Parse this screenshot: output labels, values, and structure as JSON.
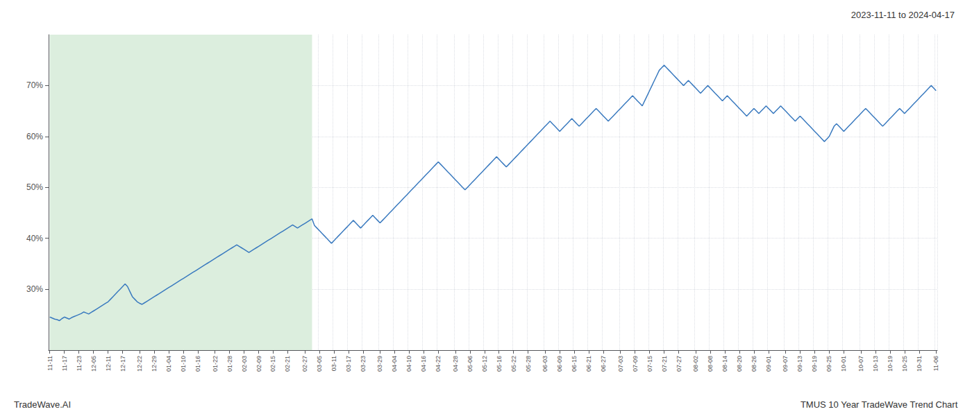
{
  "chart_data": {
    "type": "line",
    "title": "2023-11-11 to 2024-04-17",
    "annotations": [
      "TradeWave.AI",
      "TMUS 10 Year TradeWave Trend Chart"
    ],
    "color": "#3a7abf",
    "grid": true,
    "ylim": [
      18,
      80
    ],
    "yticks": [
      {
        "value": 30,
        "label": "30%"
      },
      {
        "value": 40,
        "label": "40%"
      },
      {
        "value": 50,
        "label": "50%"
      },
      {
        "value": 60,
        "label": "60%"
      },
      {
        "value": 70,
        "label": "70%"
      }
    ],
    "shaded_region": {
      "x_start": 0,
      "x_end": 108,
      "color": "#dceede"
    },
    "categories": [
      "11-11",
      null,
      null,
      null,
      null,
      null,
      "11-17",
      null,
      null,
      null,
      null,
      null,
      "11-23",
      null,
      null,
      null,
      null,
      null,
      "12-05",
      null,
      null,
      null,
      null,
      null,
      "12-11",
      null,
      null,
      null,
      null,
      null,
      "12-17",
      null,
      null,
      null,
      null,
      null,
      null,
      "12-22",
      null,
      null,
      null,
      null,
      null,
      "12-29",
      null,
      null,
      null,
      null,
      null,
      "01-04",
      null,
      null,
      null,
      null,
      null,
      "01-10",
      null,
      null,
      null,
      null,
      null,
      "01-16",
      null,
      null,
      null,
      null,
      null,
      null,
      "01-22",
      null,
      null,
      null,
      null,
      null,
      "01-28",
      null,
      null,
      null,
      null,
      null,
      "02-03",
      null,
      null,
      null,
      null,
      null,
      "02-09",
      null,
      null,
      null,
      null,
      null,
      "02-15",
      null,
      null,
      null,
      null,
      null,
      "02-21",
      null,
      null,
      null,
      null,
      null,
      null,
      "02-27",
      null,
      null,
      null,
      null,
      null,
      "03-05",
      null,
      null,
      null,
      null,
      null,
      "03-11",
      null,
      null,
      null,
      null,
      null,
      "03-17",
      null,
      null,
      null,
      null,
      null,
      "03-23",
      null,
      null,
      null,
      null,
      null,
      null,
      "03-29",
      null,
      null,
      null,
      null,
      null,
      "04-04",
      null,
      null,
      null,
      null,
      null,
      "04-10",
      null,
      null,
      null,
      null,
      null,
      "04-16",
      null,
      null,
      null,
      null,
      null,
      "04-22",
      null,
      null,
      null,
      null,
      null,
      null,
      "04-28",
      null,
      null,
      null,
      null,
      null,
      "05-06",
      null,
      null,
      null,
      null,
      null,
      "05-12",
      null,
      null,
      null,
      null,
      null,
      "05-16",
      null,
      null,
      null,
      null,
      null,
      "05-22",
      null,
      null,
      null,
      null,
      null,
      "05-28",
      null,
      null,
      null,
      null,
      null,
      null,
      "06-03",
      null,
      null,
      null,
      null,
      null,
      "06-09",
      null,
      null,
      null,
      null,
      null,
      "06-15",
      null,
      null,
      null,
      null,
      null,
      "06-21",
      null,
      null,
      null,
      null,
      null,
      "06-27",
      null,
      null,
      null,
      null,
      null,
      null,
      "07-03",
      null,
      null,
      null,
      null,
      null,
      "07-09",
      null,
      null,
      null,
      null,
      null,
      "07-15",
      null,
      null,
      null,
      null,
      null,
      "07-21",
      null,
      null,
      null,
      null,
      null,
      "07-27",
      null,
      null,
      null,
      null,
      null,
      null,
      "08-02",
      null,
      null,
      null,
      null,
      null,
      "08-08",
      null,
      null,
      null,
      null,
      null,
      "08-14",
      null,
      null,
      null,
      null,
      null,
      "08-20",
      null,
      null,
      null,
      null,
      null,
      "08-26",
      null,
      null,
      null,
      null,
      null,
      "09-01",
      null,
      null,
      null,
      null,
      null,
      null,
      "09-07",
      null,
      null,
      null,
      null,
      null,
      "09-13",
      null,
      null,
      null,
      null,
      null,
      "09-19",
      null,
      null,
      null,
      null,
      null,
      "09-25",
      null,
      null,
      null,
      null,
      null,
      "10-01",
      null,
      null,
      null,
      null,
      null,
      null,
      "10-07",
      null,
      null,
      null,
      null,
      null,
      "10-13",
      null,
      null,
      null,
      null,
      null,
      "10-19",
      null,
      null,
      null,
      null,
      null,
      "10-25",
      null,
      null,
      null,
      null,
      null,
      "10-31",
      null,
      null,
      null,
      null,
      null,
      null,
      "11-06"
    ],
    "values": [
      24.5,
      24.3,
      24.1,
      24.0,
      23.8,
      24.2,
      24.5,
      24.3,
      24.1,
      24.4,
      24.6,
      24.8,
      25.0,
      25.2,
      25.5,
      25.3,
      25.1,
      25.4,
      25.7,
      26.0,
      26.3,
      26.6,
      26.9,
      27.2,
      27.5,
      28.0,
      28.5,
      29.0,
      29.5,
      30.0,
      30.5,
      31.0,
      30.5,
      29.5,
      28.5,
      28.0,
      27.5,
      27.2,
      27.0,
      27.3,
      27.6,
      27.9,
      28.2,
      28.5,
      28.8,
      29.1,
      29.4,
      29.7,
      30.0,
      30.3,
      30.6,
      30.9,
      31.2,
      31.5,
      31.8,
      32.1,
      32.4,
      32.7,
      33.0,
      33.3,
      33.6,
      33.9,
      34.2,
      34.5,
      34.8,
      35.1,
      35.4,
      35.7,
      36.0,
      36.3,
      36.6,
      36.9,
      37.2,
      37.5,
      37.8,
      38.1,
      38.4,
      38.7,
      38.4,
      38.1,
      37.8,
      37.5,
      37.2,
      37.5,
      37.8,
      38.1,
      38.4,
      38.7,
      39.0,
      39.3,
      39.6,
      39.9,
      40.2,
      40.5,
      40.8,
      41.1,
      41.4,
      41.7,
      42.0,
      42.3,
      42.6,
      42.3,
      42.0,
      42.3,
      42.6,
      42.9,
      43.2,
      43.5,
      43.8,
      42.5,
      42.0,
      41.5,
      41.0,
      40.5,
      40.0,
      39.5,
      39.0,
      39.5,
      40.0,
      40.5,
      41.0,
      41.5,
      42.0,
      42.5,
      43.0,
      43.5,
      43.0,
      42.5,
      42.0,
      42.5,
      43.0,
      43.5,
      44.0,
      44.5,
      44.0,
      43.5,
      43.0,
      43.5,
      44.0,
      44.5,
      45.0,
      45.5,
      46.0,
      46.5,
      47.0,
      47.5,
      48.0,
      48.5,
      49.0,
      49.5,
      50.0,
      50.5,
      51.0,
      51.5,
      52.0,
      52.5,
      53.0,
      53.5,
      54.0,
      54.5,
      55.0,
      54.5,
      54.0,
      53.5,
      53.0,
      52.5,
      52.0,
      51.5,
      51.0,
      50.5,
      50.0,
      49.5,
      50.0,
      50.5,
      51.0,
      51.5,
      52.0,
      52.5,
      53.0,
      53.5,
      54.0,
      54.5,
      55.0,
      55.5,
      56.0,
      55.5,
      55.0,
      54.5,
      54.0,
      54.5,
      55.0,
      55.5,
      56.0,
      56.5,
      57.0,
      57.5,
      58.0,
      58.5,
      59.0,
      59.5,
      60.0,
      60.5,
      61.0,
      61.5,
      62.0,
      62.5,
      63.0,
      62.5,
      62.0,
      61.5,
      61.0,
      61.5,
      62.0,
      62.5,
      63.0,
      63.5,
      63.0,
      62.5,
      62.0,
      62.5,
      63.0,
      63.5,
      64.0,
      64.5,
      65.0,
      65.5,
      65.0,
      64.5,
      64.0,
      63.5,
      63.0,
      63.5,
      64.0,
      64.5,
      65.0,
      65.5,
      66.0,
      66.5,
      67.0,
      67.5,
      68.0,
      67.5,
      67.0,
      66.5,
      66.0,
      67.0,
      68.0,
      69.0,
      70.0,
      71.0,
      72.0,
      73.0,
      73.5,
      74.0,
      73.5,
      73.0,
      72.5,
      72.0,
      71.5,
      71.0,
      70.5,
      70.0,
      70.5,
      71.0,
      70.5,
      70.0,
      69.5,
      69.0,
      68.5,
      69.0,
      69.5,
      70.0,
      69.5,
      69.0,
      68.5,
      68.0,
      67.5,
      67.0,
      67.5,
      68.0,
      67.5,
      67.0,
      66.5,
      66.0,
      65.5,
      65.0,
      64.5,
      64.0,
      64.5,
      65.0,
      65.5,
      65.0,
      64.5,
      65.0,
      65.5,
      66.0,
      65.5,
      65.0,
      64.5,
      65.0,
      65.5,
      66.0,
      65.5,
      65.0,
      64.5,
      64.0,
      63.5,
      63.0,
      63.5,
      64.0,
      63.5,
      63.0,
      62.5,
      62.0,
      61.5,
      61.0,
      60.5,
      60.0,
      59.5,
      59.0,
      59.5,
      60.0,
      61.0,
      62.0,
      62.5,
      62.0,
      61.5,
      61.0,
      61.5,
      62.0,
      62.5,
      63.0,
      63.5,
      64.0,
      64.5,
      65.0,
      65.5,
      65.0,
      64.5,
      64.0,
      63.5,
      63.0,
      62.5,
      62.0,
      62.5,
      63.0,
      63.5,
      64.0,
      64.5,
      65.0,
      65.5,
      65.0,
      64.5,
      65.0,
      65.5,
      66.0,
      66.5,
      67.0,
      67.5,
      68.0,
      68.5,
      69.0,
      69.5,
      70.0,
      69.5,
      69.0
    ]
  }
}
